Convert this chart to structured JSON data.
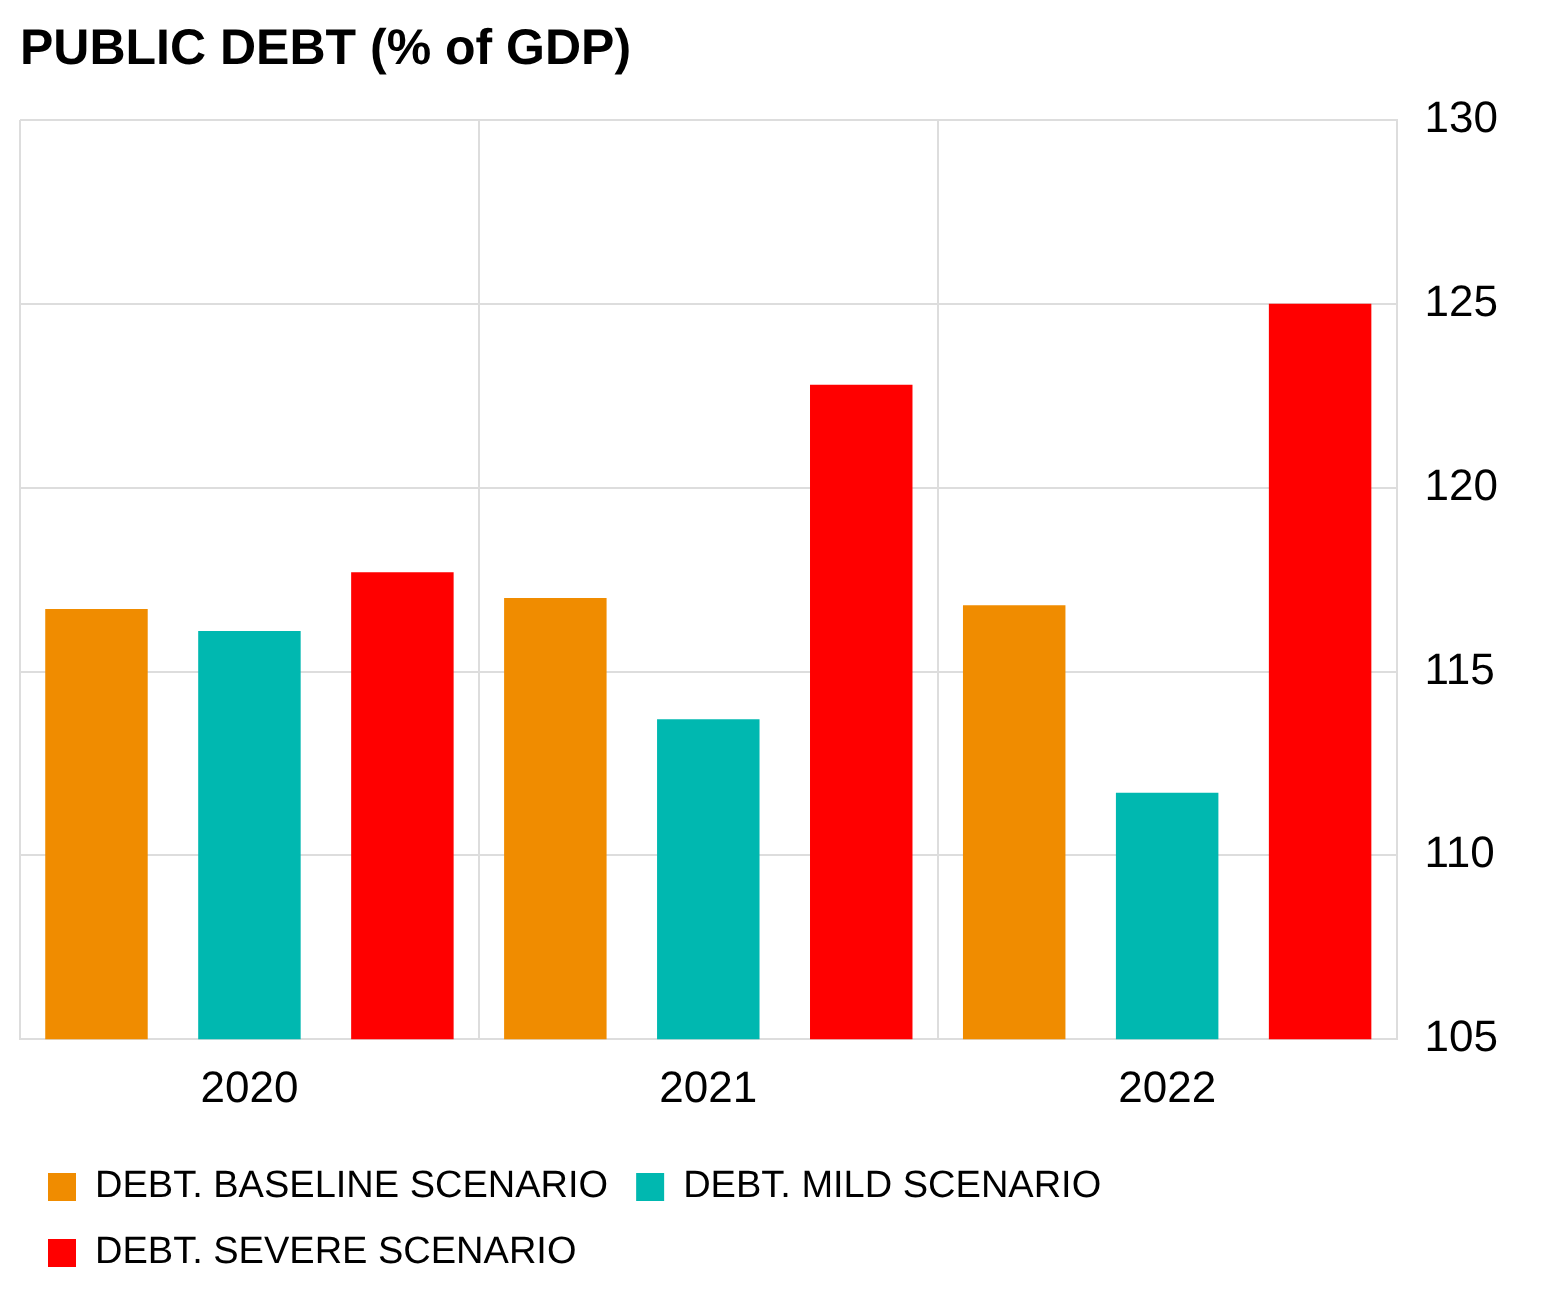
{
  "chart_data": {
    "type": "bar",
    "title": "PUBLIC DEBT (% of GDP)",
    "categories": [
      "2020",
      "2021",
      "2022"
    ],
    "series": [
      {
        "name": "DEBT. BASELINE SCENARIO",
        "color": "#f08c00",
        "values": [
          116.7,
          117.0,
          116.8
        ]
      },
      {
        "name": "DEBT. MILD SCENARIO",
        "color": "#00b8b0",
        "values": [
          116.1,
          113.7,
          111.7
        ]
      },
      {
        "name": "DEBT. SEVERE SCENARIO",
        "color": "#ff0000",
        "values": [
          117.7,
          122.8,
          125.0
        ]
      }
    ],
    "ylim": [
      105,
      130
    ],
    "yticks": [
      105,
      110,
      115,
      120,
      125,
      130
    ],
    "grid": true,
    "legend": "bottom"
  }
}
